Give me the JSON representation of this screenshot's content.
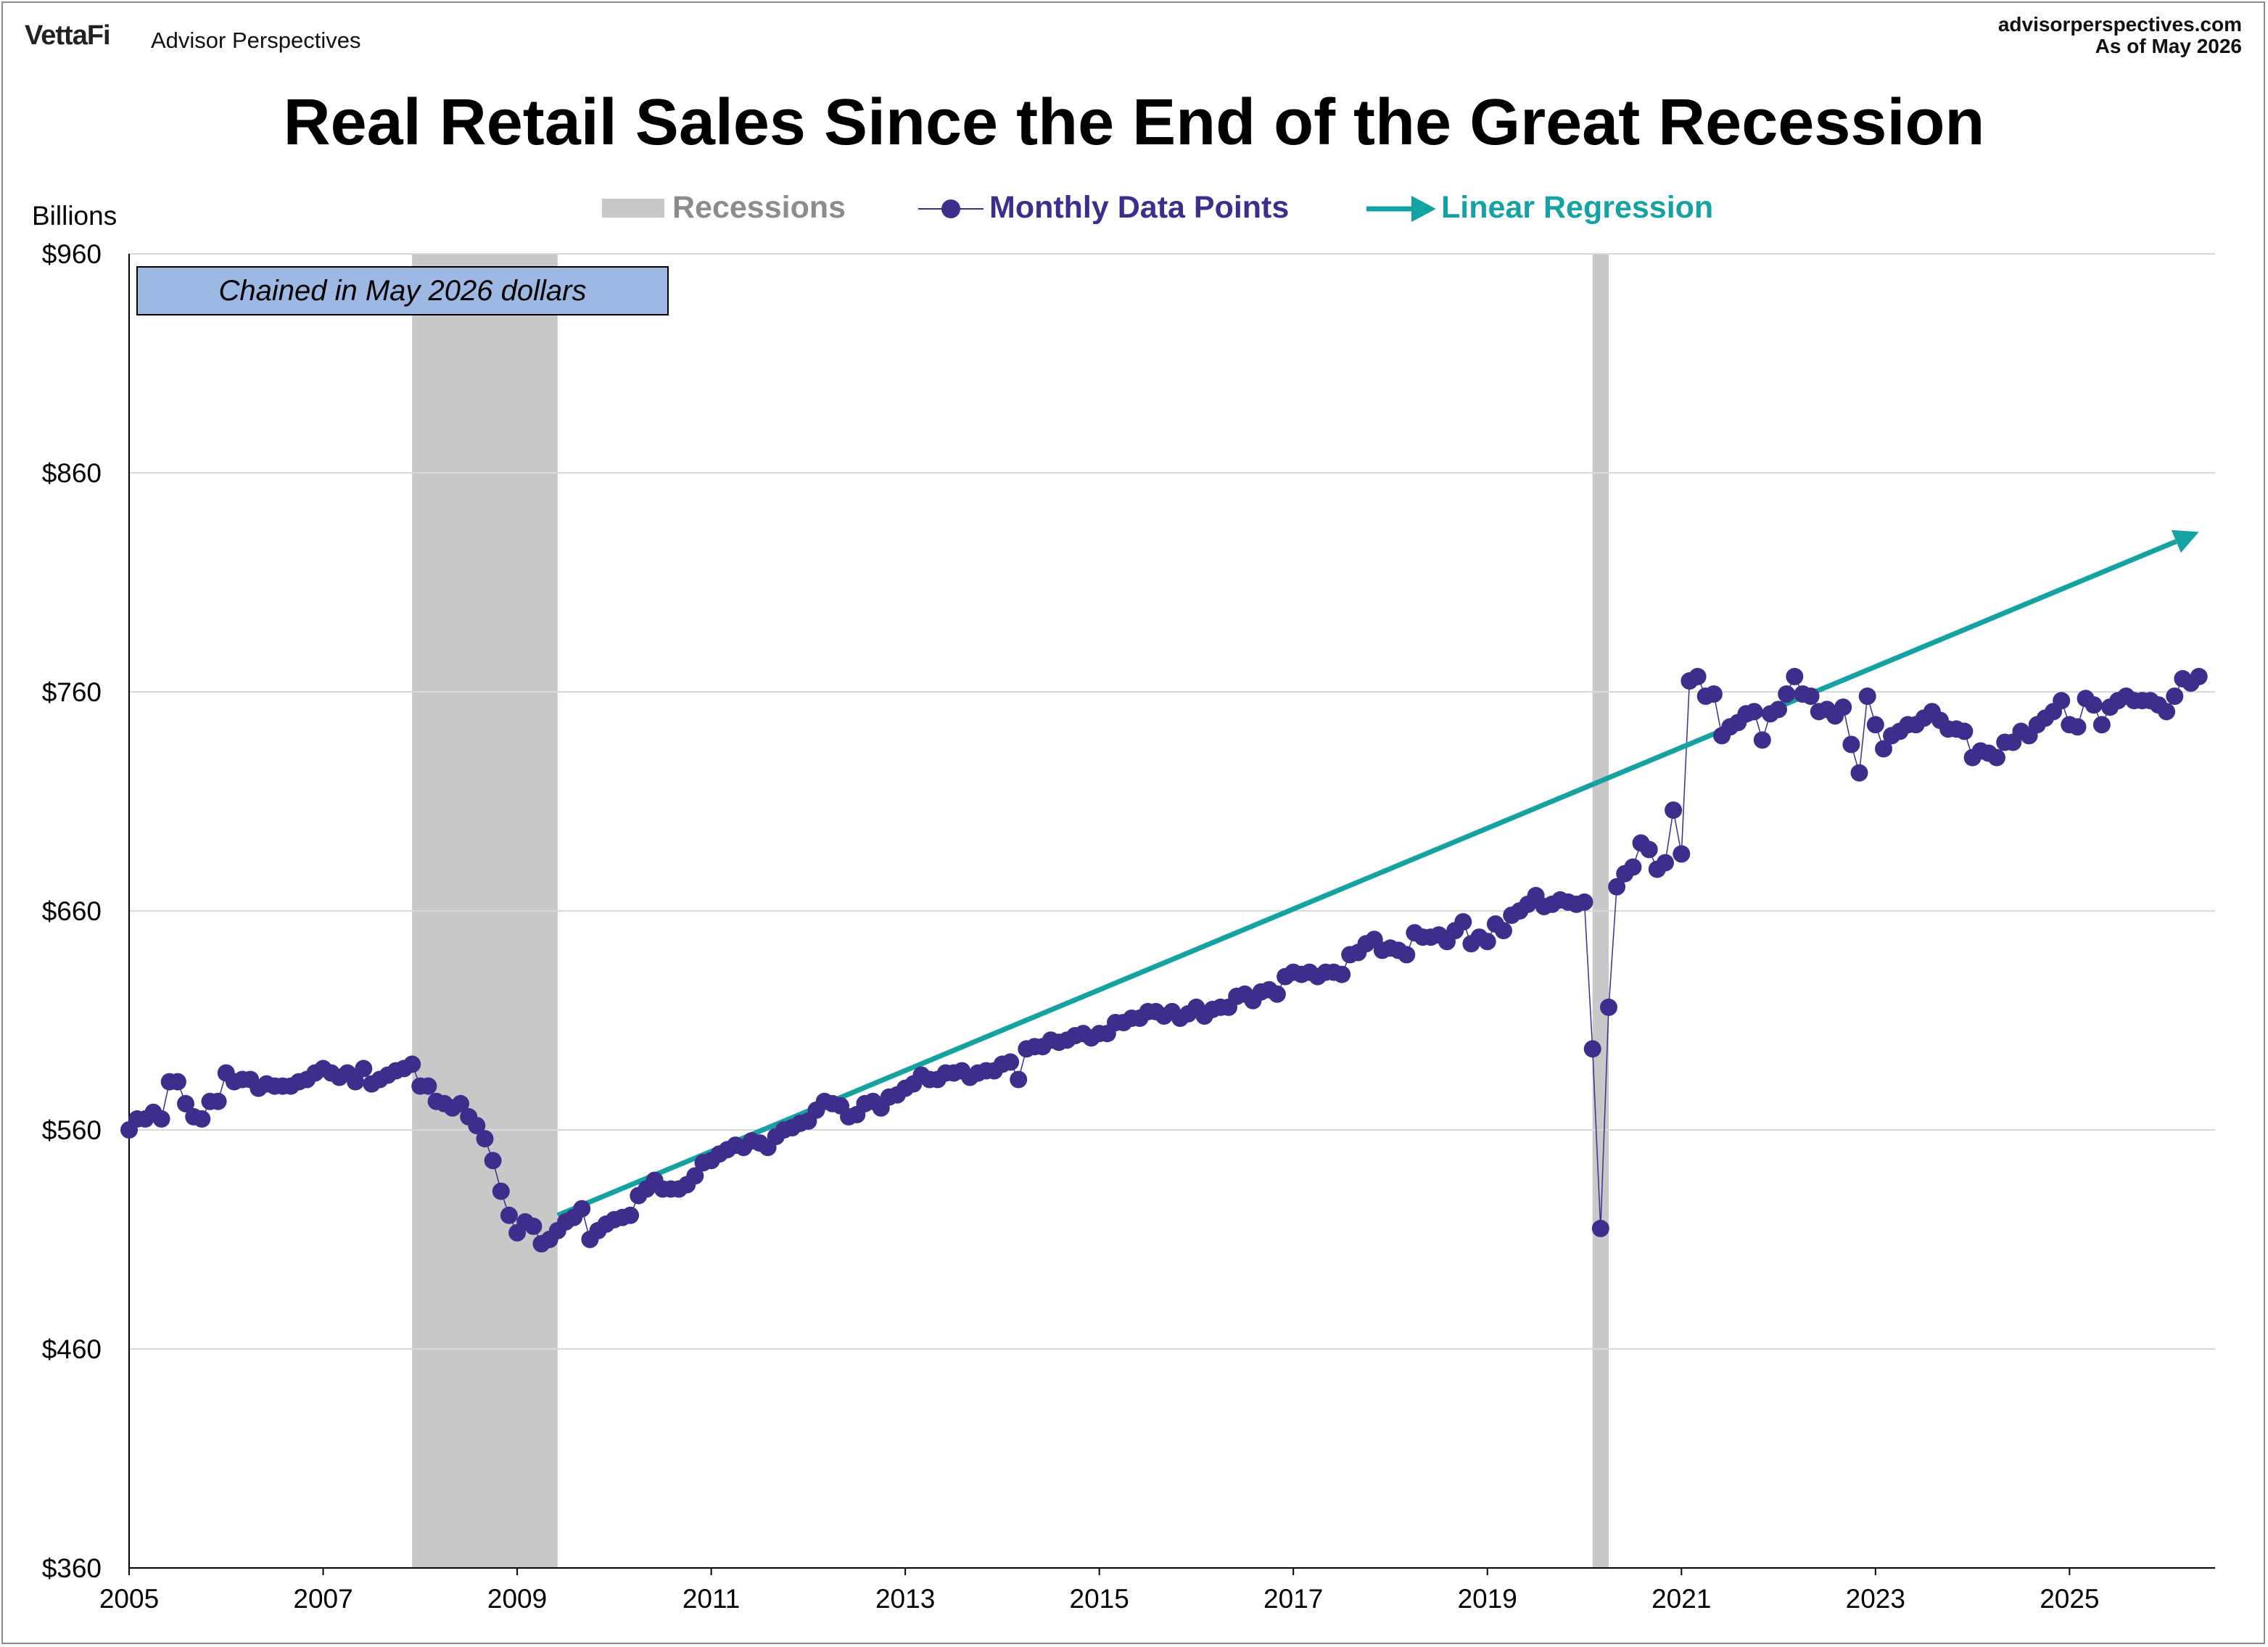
{
  "header": {
    "brand": "VettaFi",
    "brand_sub": "Advisor Perspectives",
    "site": "advisorperspectives.com",
    "as_of": "As of May 2026"
  },
  "chart_data": {
    "type": "line",
    "title": "Real Retail Sales Since the End of the Great Recession",
    "ylabel": "Billions",
    "xlabel": "",
    "ylim": [
      360,
      960
    ],
    "xlim": [
      2005.0,
      2026.5
    ],
    "y_ticks": [
      "$360",
      "$460",
      "$560",
      "$660",
      "$760",
      "$860",
      "$960"
    ],
    "y_tick_values": [
      360,
      460,
      560,
      660,
      760,
      860,
      960
    ],
    "x_ticks": [
      "2005",
      "2007",
      "2009",
      "2011",
      "2013",
      "2015",
      "2017",
      "2019",
      "2021",
      "2023",
      "2025"
    ],
    "x_tick_values": [
      2005,
      2007,
      2009,
      2011,
      2013,
      2015,
      2017,
      2019,
      2021,
      2023,
      2025
    ],
    "grid": true,
    "legend_position": "top-center",
    "legend": [
      "Recessions",
      "Monthly Data Points",
      "Linear Regression"
    ],
    "annotation": "Chained in May 2026 dollars",
    "recessions": [
      {
        "start": "2007-12",
        "end": "2009-06"
      },
      {
        "start": "2020-02",
        "end": "2020-04"
      }
    ],
    "series": [
      {
        "name": "Monthly Data Points",
        "start": "2005-01",
        "frequency": "monthly",
        "color": "#3f2d8c",
        "values": [
          560,
          565,
          565,
          568,
          565,
          582,
          582,
          572,
          566,
          565,
          573,
          573,
          586,
          582,
          583,
          583,
          579,
          581,
          580,
          580,
          580,
          582,
          583,
          586,
          588,
          586,
          584,
          586,
          582,
          588,
          581,
          583,
          585,
          587,
          588,
          590,
          580,
          580,
          573,
          572,
          570,
          572,
          566,
          562,
          556,
          546,
          532,
          521,
          513,
          518,
          516,
          508,
          510,
          514,
          518,
          520,
          524,
          510,
          514,
          517,
          519,
          520,
          521,
          530,
          533,
          537,
          533,
          533,
          533,
          535,
          539,
          545,
          546,
          549,
          551,
          553,
          552,
          555,
          554,
          552,
          557,
          560,
          561,
          563,
          564,
          569,
          573,
          572,
          571,
          566,
          567,
          572,
          573,
          570,
          575,
          576,
          579,
          581,
          585,
          583,
          583,
          586,
          586,
          587,
          584,
          586,
          587,
          587,
          590,
          591,
          583,
          597,
          598,
          598,
          601,
          600,
          601,
          603,
          604,
          602,
          604,
          604,
          609,
          609,
          611,
          611,
          614,
          614,
          612,
          614,
          611,
          613,
          616,
          612,
          615,
          616,
          616,
          621,
          622,
          619,
          623,
          624,
          622,
          630,
          632,
          631,
          632,
          630,
          632,
          632,
          631,
          640,
          641,
          645,
          647,
          642,
          643,
          642,
          640,
          650,
          648,
          648,
          649,
          646,
          651,
          655,
          645,
          648,
          646,
          654,
          651,
          658,
          660,
          663,
          667,
          662,
          663,
          665,
          664,
          663,
          664,
          597,
          515,
          616,
          671,
          677,
          680,
          691,
          688,
          679,
          682,
          706,
          686,
          765,
          767,
          758,
          759,
          740,
          744,
          746,
          750,
          751,
          738,
          750,
          752,
          759,
          767,
          759,
          758,
          751,
          752,
          749,
          753,
          736,
          723,
          758,
          745,
          734,
          740,
          742,
          745,
          745,
          748,
          751,
          747,
          743,
          743,
          742,
          730,
          733,
          732,
          730,
          737,
          737,
          742,
          740,
          745,
          748,
          751,
          756,
          745,
          744,
          757,
          754,
          745,
          753,
          756,
          758,
          756,
          756,
          756,
          754,
          751,
          758,
          766,
          764,
          767
        ]
      }
    ],
    "regression": {
      "start": "2009-06",
      "end": "2026-05",
      "start_value": 521,
      "end_value": 833
    }
  },
  "colors": {
    "recession": "#c8c8c8",
    "data": "#3f2d8c",
    "regression": "#17a2a2",
    "grid": "#d9d9d9",
    "annotation_fill": "#9db8e2",
    "legend_recessions_text": "#8c8c8c"
  }
}
